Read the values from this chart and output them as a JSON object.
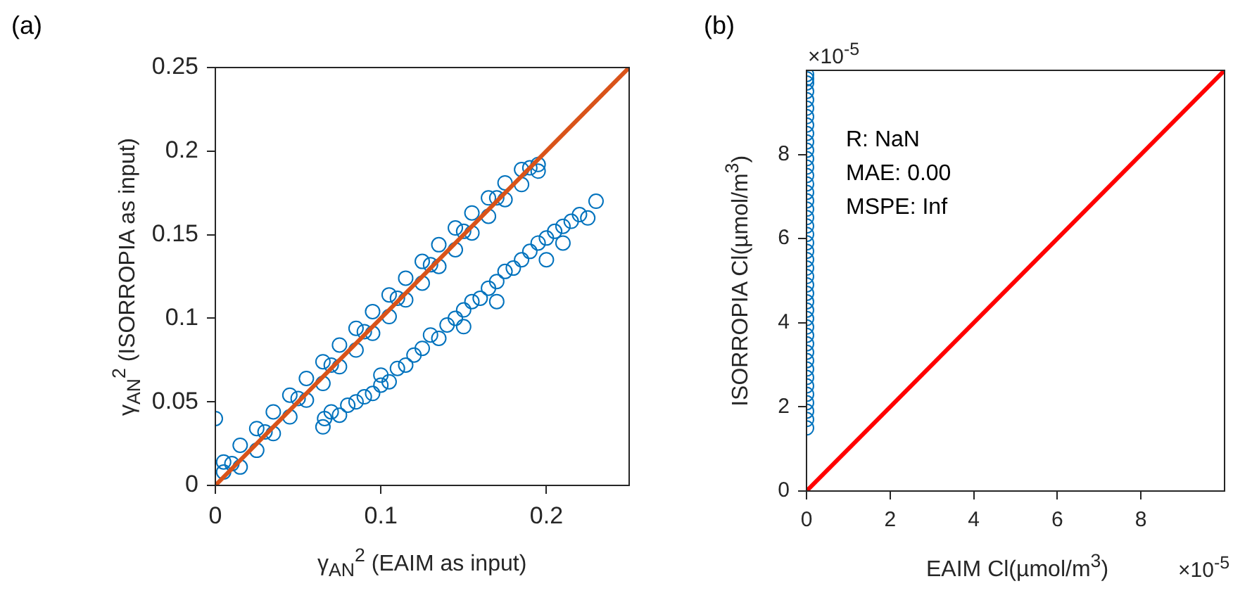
{
  "chart_data": [
    {
      "type": "scatter",
      "title": "(a)",
      "xlabel": "γ$_{AN}$$^{2}$ (EAIM as input)",
      "ylabel": "γ$_{AN}$$^{2}$ (ISORROPIA as input)",
      "xlim": [
        0,
        0.25
      ],
      "ylim": [
        0,
        0.25
      ],
      "xticks": [
        0,
        0.1,
        0.2
      ],
      "yticks": [
        0,
        0.05,
        0.1,
        0.15,
        0.2,
        0.25
      ],
      "grid": false,
      "legend": false,
      "series": [
        {
          "type": "scatter",
          "color": "#0072bd",
          "marker": "circle",
          "x": [
            0.005,
            0.005,
            0.015,
            0.015,
            0.025,
            0.025,
            0.035,
            0.035,
            0.045,
            0.045,
            0.055,
            0.055,
            0.065,
            0.065,
            0.075,
            0.075,
            0.085,
            0.085,
            0.095,
            0.095,
            0.105,
            0.105,
            0.115,
            0.115,
            0.125,
            0.125,
            0.135,
            0.135,
            0.145,
            0.145,
            0.155,
            0.155,
            0.165,
            0.165,
            0.175,
            0.175,
            0.185,
            0.185,
            0.195,
            0.195,
            0.01,
            0.03,
            0.05,
            0.07,
            0.09,
            0.11,
            0.13,
            0.15,
            0.17,
            0.19,
            0.065,
            0.066,
            0.07,
            0.075,
            0.08,
            0.085,
            0.09,
            0.095,
            0.1,
            0.1,
            0.105,
            0.11,
            0.115,
            0.12,
            0.125,
            0.13,
            0.135,
            0.14,
            0.145,
            0.15,
            0.155,
            0.16,
            0.165,
            0.17,
            0.175,
            0.18,
            0.185,
            0.19,
            0.195,
            0.2,
            0.205,
            0.21,
            0.215,
            0.22,
            0.225,
            0.23,
            0.2,
            0.21,
            0.17,
            0.15,
            0
          ],
          "values": [
            0.014,
            0.008,
            0.024,
            0.011,
            0.034,
            0.021,
            0.044,
            0.031,
            0.054,
            0.041,
            0.064,
            0.051,
            0.074,
            0.061,
            0.084,
            0.071,
            0.094,
            0.081,
            0.104,
            0.091,
            0.114,
            0.101,
            0.124,
            0.111,
            0.134,
            0.121,
            0.144,
            0.131,
            0.154,
            0.141,
            0.163,
            0.151,
            0.172,
            0.161,
            0.181,
            0.171,
            0.189,
            0.18,
            0.192,
            0.188,
            0.013,
            0.032,
            0.052,
            0.072,
            0.092,
            0.112,
            0.132,
            0.152,
            0.172,
            0.19,
            0.035,
            0.04,
            0.044,
            0.042,
            0.048,
            0.05,
            0.053,
            0.055,
            0.06,
            0.066,
            0.062,
            0.07,
            0.072,
            0.078,
            0.082,
            0.09,
            0.088,
            0.096,
            0.1,
            0.105,
            0.11,
            0.112,
            0.118,
            0.122,
            0.128,
            0.13,
            0.135,
            0.14,
            0.145,
            0.148,
            0.152,
            0.155,
            0.158,
            0.162,
            0.16,
            0.17,
            0.135,
            0.145,
            0.11,
            0.095,
            0.04
          ]
        },
        {
          "type": "line",
          "color": "#d95319",
          "x": [
            0,
            0.25
          ],
          "values": [
            0,
            0.25
          ]
        }
      ]
    },
    {
      "type": "scatter",
      "title": "(b)",
      "xlabel": "EAIM Cl(µmol/m$^{3}$)",
      "ylabel": "ISORROPIA Cl(µmol/m$^{3}$)",
      "xlim": [
        0,
        10
      ],
      "ylim": [
        0,
        10
      ],
      "xticks": [
        0,
        2,
        4,
        6,
        8
      ],
      "yticks": [
        0,
        2,
        4,
        6,
        8
      ],
      "grid": false,
      "legend": false,
      "annotations": [
        "R: NaN",
        "MAE: 0.00",
        "MSPE: Inf",
        "×10$^{-5}$",
        "×10$^{-5}$"
      ],
      "series": [
        {
          "type": "scatter",
          "color": "#0072bd",
          "marker": "circle",
          "x": [
            0,
            0,
            0,
            0,
            0,
            0,
            0,
            0,
            0,
            0,
            0,
            0,
            0,
            0,
            0,
            0,
            0,
            0,
            0,
            0,
            0,
            0,
            0,
            0,
            0,
            0,
            0,
            0,
            0,
            0,
            0,
            0,
            0,
            0,
            0,
            0,
            0,
            0,
            0,
            0,
            0,
            0,
            0,
            0
          ],
          "values": [
            1.5,
            1.7,
            1.9,
            2.1,
            2.3,
            2.5,
            2.7,
            2.9,
            3.1,
            3.3,
            3.5,
            3.7,
            3.9,
            4.1,
            4.3,
            4.5,
            4.7,
            4.9,
            5.1,
            5.3,
            5.5,
            5.7,
            5.9,
            6.1,
            6.3,
            6.5,
            6.7,
            6.9,
            7.1,
            7.3,
            7.5,
            7.7,
            7.9,
            8.1,
            8.3,
            8.5,
            8.7,
            8.9,
            9.1,
            9.3,
            9.5,
            9.7,
            9.9,
            9.8
          ]
        },
        {
          "type": "line",
          "color": "#ff0000",
          "x": [
            0,
            10
          ],
          "values": [
            0,
            10
          ]
        }
      ]
    }
  ]
}
